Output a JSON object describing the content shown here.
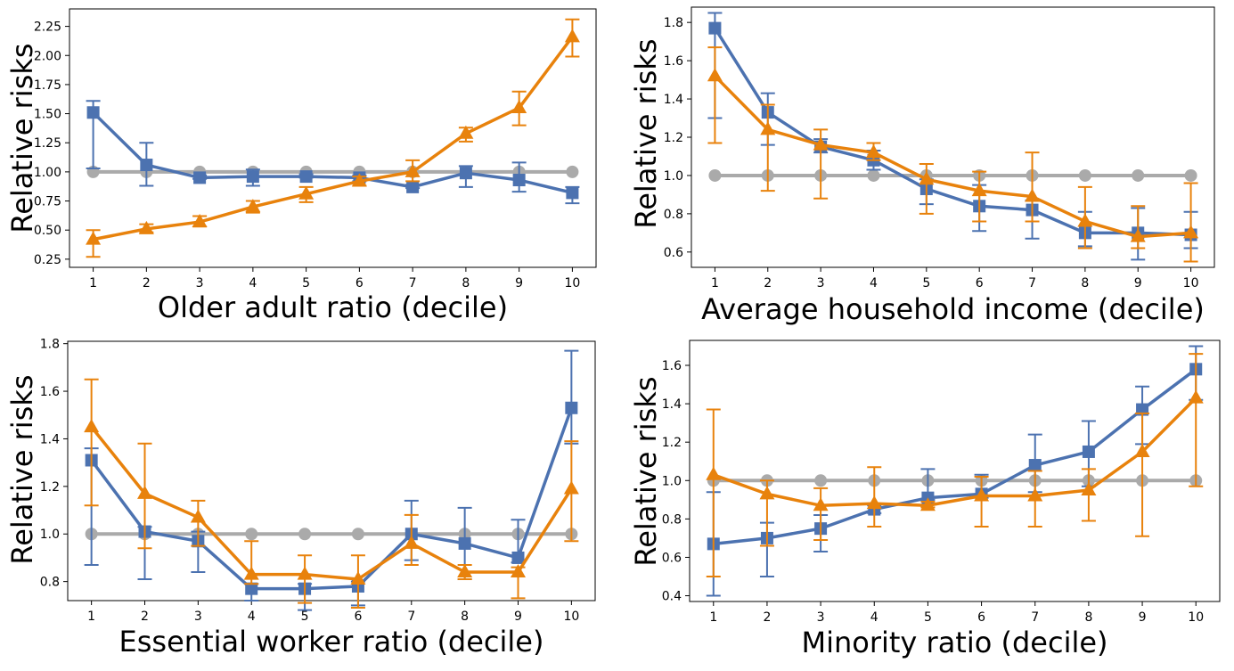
{
  "chart_data": [
    {
      "type": "line",
      "xlabel": "Older adult ratio (decile)",
      "ylabel": "Relative risks",
      "x": [
        1,
        2,
        3,
        4,
        5,
        6,
        7,
        8,
        9,
        10
      ],
      "ylim": [
        0.18,
        2.4
      ],
      "yticks": [
        "0.25",
        "0.50",
        "0.75",
        "1.00",
        "1.25",
        "1.50",
        "1.75",
        "2.00",
        "2.25"
      ],
      "series": [
        {
          "color": "#aaaaaa",
          "marker": "circle",
          "values": [
            1,
            1,
            1,
            1,
            1,
            1,
            1,
            1,
            1,
            1
          ]
        },
        {
          "color": "#4c72b0",
          "marker": "square",
          "values": [
            1.51,
            1.06,
            0.95,
            0.96,
            0.96,
            0.95,
            0.87,
            0.99,
            0.93,
            0.82
          ],
          "err_low": [
            1.03,
            0.88,
            0.94,
            0.88,
            0.95,
            0.92,
            0.86,
            0.87,
            0.83,
            0.73
          ],
          "err_high": [
            1.61,
            1.25,
            0.97,
            1.02,
            0.98,
            0.97,
            0.89,
            1.05,
            1.08,
            0.87
          ]
        },
        {
          "color": "#e8820c",
          "marker": "triangle",
          "values": [
            0.42,
            0.51,
            0.57,
            0.7,
            0.81,
            0.92,
            1.0,
            1.33,
            1.55,
            2.16
          ],
          "err_low": [
            0.27,
            0.48,
            0.53,
            0.65,
            0.74,
            0.88,
            0.92,
            1.26,
            1.4,
            1.99
          ],
          "err_high": [
            0.5,
            0.55,
            0.62,
            0.75,
            0.87,
            0.96,
            1.1,
            1.38,
            1.69,
            2.31
          ]
        }
      ]
    },
    {
      "type": "line",
      "xlabel": "Average household income (decile)",
      "ylabel": "Relative risks",
      "x": [
        1,
        2,
        3,
        4,
        5,
        6,
        7,
        8,
        9,
        10
      ],
      "ylim": [
        0.52,
        1.88
      ],
      "yticks": [
        "0.6",
        "0.8",
        "1.0",
        "1.2",
        "1.4",
        "1.6",
        "1.8"
      ],
      "series": [
        {
          "color": "#aaaaaa",
          "marker": "circle",
          "values": [
            1,
            1,
            1,
            1,
            1,
            1,
            1,
            1,
            1,
            1
          ]
        },
        {
          "color": "#4c72b0",
          "marker": "square",
          "values": [
            1.77,
            1.33,
            1.15,
            1.08,
            0.93,
            0.84,
            0.82,
            0.7,
            0.7,
            0.69
          ],
          "err_low": [
            1.3,
            1.16,
            1.12,
            1.03,
            0.85,
            0.71,
            0.67,
            0.63,
            0.56,
            0.62
          ],
          "err_high": [
            1.85,
            1.43,
            1.19,
            1.13,
            0.98,
            0.95,
            0.87,
            0.81,
            0.83,
            0.81
          ]
        },
        {
          "color": "#e8820c",
          "marker": "triangle",
          "values": [
            1.52,
            1.24,
            1.16,
            1.12,
            0.98,
            0.92,
            0.89,
            0.76,
            0.68,
            0.7
          ],
          "err_low": [
            1.17,
            0.92,
            0.88,
            1.08,
            0.8,
            0.76,
            0.76,
            0.62,
            0.62,
            0.55
          ],
          "err_high": [
            1.67,
            1.37,
            1.24,
            1.17,
            1.06,
            1.02,
            1.12,
            0.94,
            0.84,
            0.96
          ]
        }
      ]
    },
    {
      "type": "line",
      "xlabel": "Essential worker ratio (decile)",
      "ylabel": "Relative risks",
      "x": [
        1,
        2,
        3,
        4,
        5,
        6,
        7,
        8,
        9,
        10
      ],
      "ylim": [
        0.72,
        1.81
      ],
      "yticks": [
        "0.8",
        "1.0",
        "1.2",
        "1.4",
        "1.6",
        "1.8"
      ],
      "series": [
        {
          "color": "#aaaaaa",
          "marker": "circle",
          "values": [
            1,
            1,
            1,
            1,
            1,
            1,
            1,
            1,
            1,
            1
          ]
        },
        {
          "color": "#4c72b0",
          "marker": "square",
          "values": [
            1.31,
            1.01,
            0.97,
            0.77,
            0.77,
            0.78,
            1.0,
            0.96,
            0.9,
            1.53
          ],
          "err_low": [
            0.87,
            0.81,
            0.84,
            0.72,
            0.68,
            0.7,
            0.89,
            0.81,
            0.88,
            1.38
          ],
          "err_high": [
            1.36,
            1.03,
            1.01,
            0.79,
            0.79,
            0.8,
            1.14,
            1.11,
            1.06,
            1.77
          ]
        },
        {
          "color": "#e8820c",
          "marker": "triangle",
          "values": [
            1.45,
            1.17,
            1.07,
            0.83,
            0.83,
            0.81,
            0.96,
            0.84,
            0.84,
            1.19
          ],
          "err_low": [
            1.12,
            0.94,
            0.95,
            0.79,
            0.71,
            0.69,
            0.87,
            0.81,
            0.73,
            0.97
          ],
          "err_high": [
            1.65,
            1.38,
            1.14,
            0.97,
            0.91,
            0.91,
            1.08,
            0.87,
            0.86,
            1.39
          ]
        }
      ]
    },
    {
      "type": "line",
      "xlabel": "Minority ratio (decile)",
      "ylabel": "Relative risks",
      "x": [
        1,
        2,
        3,
        4,
        5,
        6,
        7,
        8,
        9,
        10
      ],
      "ylim": [
        0.37,
        1.73
      ],
      "yticks": [
        "0.4",
        "0.6",
        "0.8",
        "1.0",
        "1.2",
        "1.4",
        "1.6"
      ],
      "series": [
        {
          "color": "#aaaaaa",
          "marker": "circle",
          "values": [
            1,
            1,
            1,
            1,
            1,
            1,
            1,
            1,
            1,
            1
          ]
        },
        {
          "color": "#4c72b0",
          "marker": "square",
          "values": [
            0.67,
            0.7,
            0.75,
            0.85,
            0.91,
            0.93,
            1.08,
            1.15,
            1.37,
            1.58
          ],
          "err_low": [
            0.4,
            0.5,
            0.63,
            0.83,
            0.9,
            0.91,
            0.94,
            0.97,
            1.19,
            1.42
          ],
          "err_high": [
            0.94,
            0.78,
            0.82,
            0.87,
            1.06,
            1.03,
            1.24,
            1.31,
            1.49,
            1.7
          ]
        },
        {
          "color": "#e8820c",
          "marker": "triangle",
          "values": [
            1.03,
            0.93,
            0.87,
            0.88,
            0.87,
            0.92,
            0.92,
            0.95,
            1.15,
            1.43
          ],
          "err_low": [
            0.5,
            0.66,
            0.69,
            0.76,
            0.86,
            0.76,
            0.76,
            0.79,
            0.71,
            0.97
          ],
          "err_high": [
            1.37,
            1.0,
            0.96,
            1.07,
            0.89,
            1.02,
            1.05,
            1.06,
            1.35,
            1.66
          ]
        }
      ]
    }
  ]
}
